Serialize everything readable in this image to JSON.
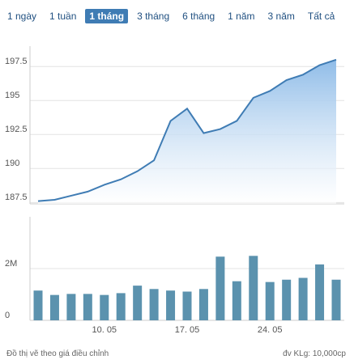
{
  "range_buttons": [
    {
      "label": "1 ngày",
      "active": false
    },
    {
      "label": "1 tuần",
      "active": false
    },
    {
      "label": "1 tháng",
      "active": true
    },
    {
      "label": "3 tháng",
      "active": false
    },
    {
      "label": "6 tháng",
      "active": false
    },
    {
      "label": "1 năm",
      "active": false
    },
    {
      "label": "3 năm",
      "active": false
    },
    {
      "label": "Tất cả",
      "active": false
    }
  ],
  "chart_data": [
    {
      "type": "area",
      "color": "#3f7cb4",
      "values": [
        187.6,
        187.7,
        188.0,
        188.3,
        188.8,
        189.2,
        189.8,
        190.6,
        193.5,
        194.4,
        192.6,
        192.9,
        193.5,
        195.2,
        195.7,
        196.5,
        196.9,
        197.6,
        198.0
      ],
      "ylim": [
        187.4,
        199
      ],
      "yticks": [
        187.5,
        190,
        192.5,
        195,
        197.5
      ],
      "grid": true
    },
    {
      "type": "bar",
      "color": "#5b92ae",
      "categories": [
        null,
        null,
        null,
        null,
        "10. 05",
        null,
        null,
        null,
        null,
        "17. 05",
        null,
        null,
        null,
        null,
        "24. 05",
        null,
        null,
        null,
        null
      ],
      "values": [
        1150000,
        980000,
        1020000,
        1020000,
        980000,
        1050000,
        1340000,
        1210000,
        1150000,
        1110000,
        1210000,
        2460000,
        1510000,
        2490000,
        1480000,
        1570000,
        1640000,
        2160000,
        1570000
      ],
      "ylim": [
        0,
        4000000
      ],
      "yticks": [
        0,
        {
          "value": 2000000,
          "label": "2M"
        }
      ],
      "grid": true
    }
  ],
  "notes": {
    "left": "Đồ thị vẽ theo giá điều chỉnh",
    "right": "đv KLg: 10,000cp"
  }
}
